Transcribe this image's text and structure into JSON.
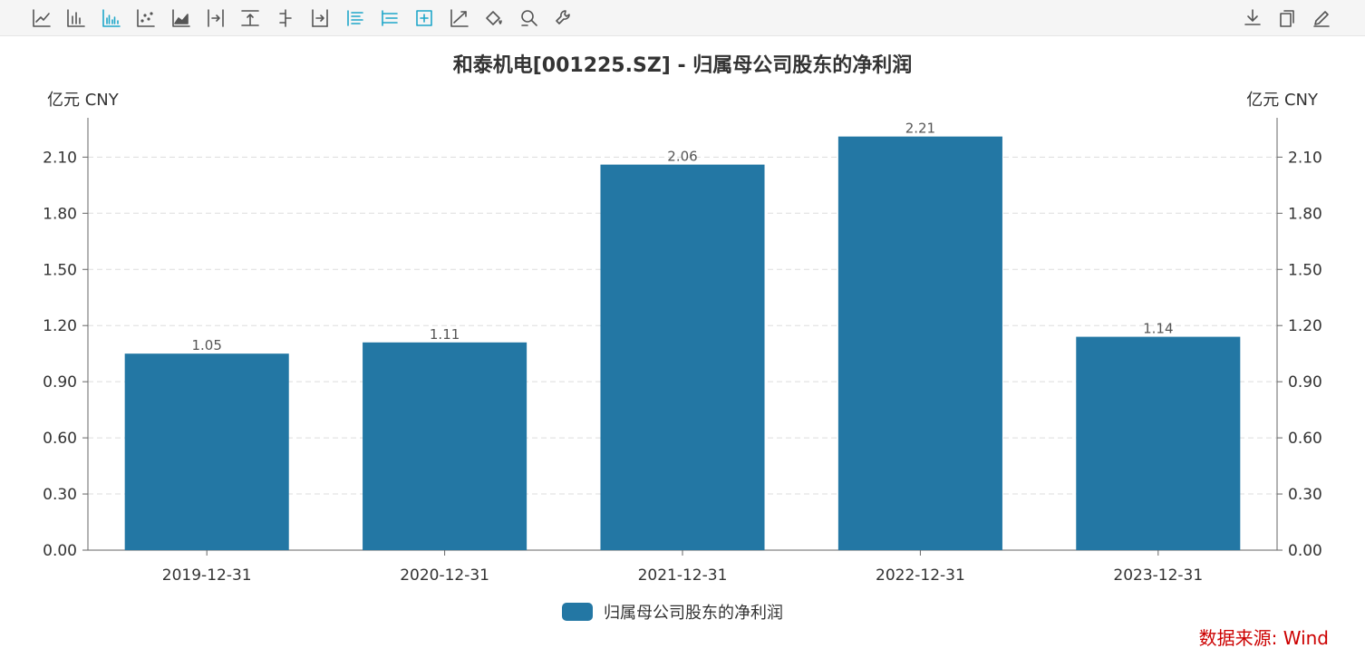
{
  "toolbar": {
    "left_tools": [
      {
        "name": "line-chart-icon",
        "active": false
      },
      {
        "name": "bar-chart-icon",
        "active": false
      },
      {
        "name": "grouped-bar-icon",
        "active": true
      },
      {
        "name": "scatter-icon",
        "active": false
      },
      {
        "name": "area-chart-icon",
        "active": false
      },
      {
        "name": "step-right-icon",
        "active": false
      },
      {
        "name": "align-top-icon",
        "active": false
      },
      {
        "name": "step-center-icon",
        "active": false
      },
      {
        "name": "step-end-icon",
        "active": false
      },
      {
        "name": "list-align-icon",
        "active": true
      },
      {
        "name": "tree-list-icon",
        "active": true
      },
      {
        "name": "boxed-plus-icon",
        "active": true
      },
      {
        "name": "trend-line-icon",
        "active": false
      },
      {
        "name": "paint-bucket-icon",
        "active": false
      },
      {
        "name": "zoom-search-icon",
        "active": false
      },
      {
        "name": "wrench-icon",
        "active": false
      }
    ],
    "right_tools": [
      {
        "name": "download-icon"
      },
      {
        "name": "copy-icon"
      },
      {
        "name": "edit-icon"
      }
    ]
  },
  "colors": {
    "bar": "#2377a4",
    "source_text": "#cc0000",
    "grid": "#dddddd",
    "axis": "#666666"
  },
  "source": {
    "text": "数据来源: Wind"
  },
  "chart_data": {
    "type": "bar",
    "title": "和泰机电[001225.SZ] - 归属母公司股东的净利润",
    "ylabel_left": "亿元  CNY",
    "ylabel_right": "亿元  CNY",
    "categories": [
      "2019-12-31",
      "2020-12-31",
      "2021-12-31",
      "2022-12-31",
      "2023-12-31"
    ],
    "series": [
      {
        "name": "归属母公司股东的净利润",
        "values": [
          1.05,
          1.11,
          2.06,
          2.21,
          1.14
        ]
      }
    ],
    "data_labels": [
      "1.05",
      "1.11",
      "2.06",
      "2.21",
      "1.14"
    ],
    "yticks": [
      "0.00",
      "0.30",
      "0.60",
      "0.90",
      "1.20",
      "1.50",
      "1.80",
      "2.10"
    ],
    "ylim": [
      0,
      2.31
    ],
    "grid": true,
    "legend_position": "bottom-center"
  }
}
